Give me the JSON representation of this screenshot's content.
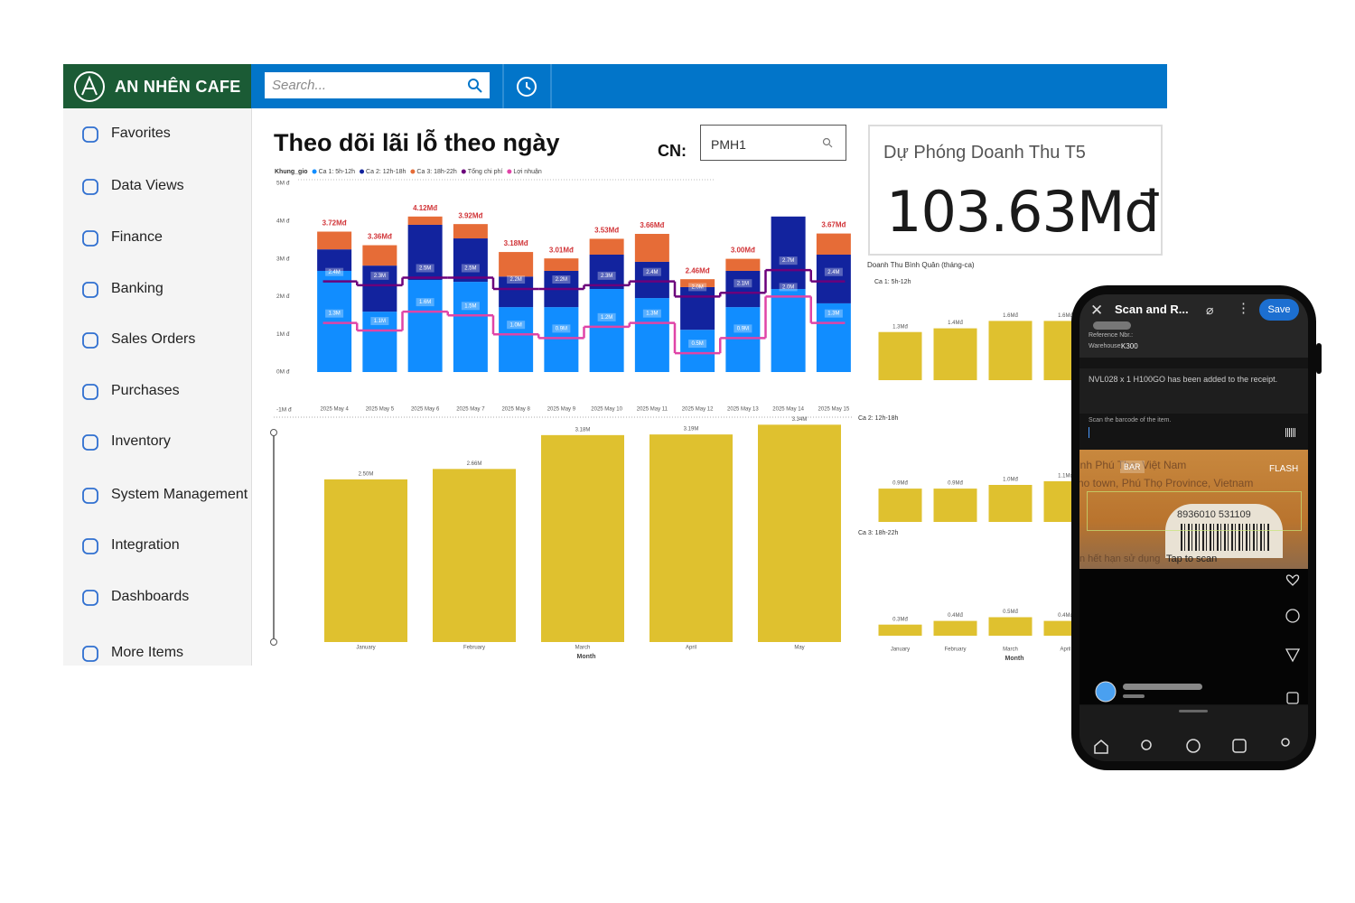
{
  "header": {
    "brand": "AN NHÊN CAFE",
    "search_placeholder": "Search..."
  },
  "sidebar": {
    "items": [
      "Favorites",
      "Data Views",
      "Finance",
      "Banking",
      "Sales Orders",
      "Purchases",
      "Inventory",
      "System Management",
      "Integration",
      "Dashboards",
      "More Items"
    ]
  },
  "dashboard": {
    "branch_label": "CN:",
    "branch_value": "PMH1",
    "kpi": {
      "title": "Dự Phóng Doanh Thu T5",
      "value": "103.63Mđ"
    },
    "avg_title": "Doanh Thu Bình Quân (tháng-ca)"
  },
  "chart_data": [
    {
      "type": "combo",
      "title": "Theo dõi lãi lỗ theo ngày",
      "legend_title": "Khung_gio",
      "stacked": true,
      "categories": [
        "2025 May 4",
        "2025 May 5",
        "2025 May 6",
        "2025 May 7",
        "2025 May 8",
        "2025 May 9",
        "2025 May 10",
        "2025 May 11",
        "2025 May 12",
        "2025 May 13",
        "2025 May 14",
        "2025 May 15"
      ],
      "series": [
        {
          "name": "Ca 1: 5h-12h",
          "color": "#118dff",
          "values": [
            2.68,
            1.6,
            2.44,
            2.39,
            1.72,
            1.72,
            2.2,
            1.96,
            1.12,
            1.72,
            2.2,
            1.82
          ]
        },
        {
          "name": "Ca 2: 12h-18h",
          "color": "#12239e",
          "values": [
            0.57,
            1.22,
            1.46,
            1.15,
            0.81,
            0.96,
            0.91,
            0.96,
            1.13,
            0.96,
            1.92,
            1.29
          ]
        },
        {
          "name": "Ca 3: 18h-22h",
          "color": "#e66c37",
          "values": [
            0.47,
            0.54,
            0.22,
            0.38,
            0.65,
            0.33,
            0.42,
            0.74,
            0.21,
            0.32,
            0,
            0.56
          ]
        },
        {
          "name": "Tổng chi phí",
          "color": "#6b007b",
          "type": "line",
          "values": [
            2.4,
            2.3,
            2.5,
            2.5,
            2.2,
            2.2,
            2.3,
            2.4,
            2.0,
            2.1,
            2.7,
            2.4
          ],
          "value_labels": [
            "2.4M",
            "2.3M",
            "2.5M",
            "2.5M",
            "2.2M",
            "2.2M",
            "2.3M",
            "2.4M",
            "2.0M",
            "2.1M",
            "2.7M",
            "2.4M"
          ]
        },
        {
          "name": "Lợi nhuận",
          "color": "#e044a7",
          "type": "line",
          "values": [
            1.3,
            1.1,
            1.6,
            1.5,
            1.0,
            0.9,
            1.2,
            1.3,
            0.5,
            0.9,
            2.0,
            1.3
          ],
          "value_labels": [
            "1.3M",
            "1.1M",
            "1.6M",
            "1.5M",
            "1.0M",
            "0.9M",
            "1.2M",
            "1.3M",
            "0.5M",
            "0.9M",
            "2.0M",
            "1.3M"
          ]
        }
      ],
      "total_labels": [
        "3.72Mđ",
        "3.36Mđ",
        "4.12Mđ",
        "3.92Mđ",
        "3.18Mđ",
        "3.01Mđ",
        "3.53Mđ",
        "3.66Mđ",
        "2.46Mđ",
        "3.00Mđ",
        null,
        "3.67Mđ"
      ],
      "total_color": "#d13438",
      "ylim": [
        -1,
        5
      ],
      "yticks": [
        {
          "value": 5,
          "label": "5M đ"
        },
        {
          "value": 4,
          "label": "4M đ"
        },
        {
          "value": 3,
          "label": "3M đ"
        },
        {
          "value": 2,
          "label": "2M đ"
        },
        {
          "value": 1,
          "label": "1M đ"
        },
        {
          "value": 0,
          "label": "0M đ"
        },
        {
          "value": -1,
          "label": "-1M đ"
        }
      ]
    },
    {
      "type": "bar",
      "categories": [
        "January",
        "February",
        "March",
        "April",
        "May"
      ],
      "x_label": "Month",
      "values": [
        2.5,
        2.66,
        3.18,
        3.19,
        3.34
      ],
      "value_labels": [
        "2.50M",
        "2.66M",
        "3.18M",
        "3.19M",
        "3.34M"
      ],
      "color": "#dfc12f",
      "ylim": [
        0,
        3.4
      ]
    },
    {
      "type": "bar",
      "title": "Ca 1: 5h-12h",
      "values": [
        1.3,
        1.4,
        1.6,
        1.6
      ],
      "value_labels": [
        "1.3Mđ",
        "1.4Mđ",
        "1.6Mđ",
        "1.6Mđ"
      ],
      "color": "#dfc12f",
      "ylim": [
        0,
        2
      ]
    },
    {
      "type": "bar",
      "title": "Ca 2: 12h-18h",
      "values": [
        0.9,
        0.9,
        1.0,
        1.1
      ],
      "value_labels": [
        "0.9Mđ",
        "0.9Mđ",
        "1.0Mđ",
        "1.1Mđ"
      ],
      "color": "#dfc12f",
      "ylim": [
        0,
        2
      ]
    },
    {
      "type": "bar",
      "title": "Ca 3: 18h-22h",
      "categories": [
        "January",
        "February",
        "March",
        "April"
      ],
      "x_label": "Month",
      "values": [
        0.3,
        0.4,
        0.5,
        0.4
      ],
      "value_labels": [
        "0.3Mđ",
        "0.4Mđ",
        "0.5Mđ",
        "0.4Mđ"
      ],
      "color": "#dfc12f",
      "ylim": [
        0,
        2
      ]
    }
  ],
  "phone": {
    "title": "Scan and R...",
    "save": "Save",
    "reference_label": "Reference Nbr.:",
    "warehouse_label": "Warehouse:",
    "warehouse": "K300",
    "message": "NVL028 x 1 H100GO has been added to the receipt.",
    "scan_prompt": "Scan the barcode of the item.",
    "bar_mode": "BAR",
    "flash": "FLASH",
    "camera_line_1": "inh Phú Thọ, Việt Nam",
    "camera_line_2": "ho town, Phú Thọ Province, Vietnam",
    "barcode": "8936010 531109",
    "camera_line_3": "n hết hạn sử dụng",
    "tap": "Tap to scan"
  }
}
